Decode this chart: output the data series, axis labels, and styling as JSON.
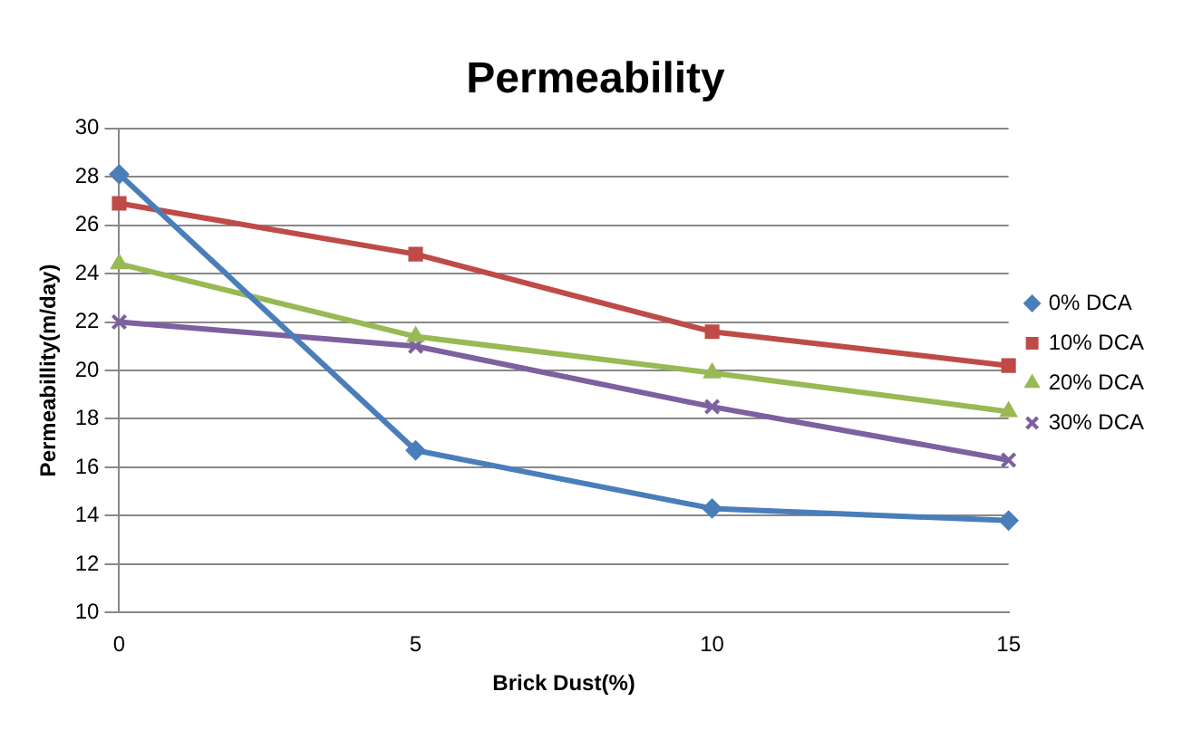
{
  "chart_data": {
    "type": "line",
    "title": "Permeability",
    "xlabel": "Brick Dust(%)",
    "ylabel": "Permeabillity(m/day)",
    "categories": [
      "0",
      "5",
      "10",
      "15"
    ],
    "series": [
      {
        "name": "0% DCA",
        "color": "#4a7ebb",
        "marker": "diamond",
        "values": [
          28.1,
          16.7,
          14.3,
          13.8
        ]
      },
      {
        "name": "10% DCA",
        "color": "#be4b48",
        "marker": "square",
        "values": [
          26.9,
          24.8,
          21.6,
          20.2
        ]
      },
      {
        "name": "20% DCA",
        "color": "#98b954",
        "marker": "triangle",
        "values": [
          24.4,
          21.4,
          19.9,
          18.3
        ]
      },
      {
        "name": "30% DCA",
        "color": "#7d60a0",
        "marker": "cross",
        "values": [
          22,
          21,
          18.5,
          16.3
        ]
      }
    ],
    "ylim": [
      10,
      30
    ],
    "yticks": [
      10,
      12,
      14,
      16,
      18,
      20,
      22,
      24,
      26,
      28,
      30
    ],
    "grid": "y",
    "legend": "right"
  }
}
